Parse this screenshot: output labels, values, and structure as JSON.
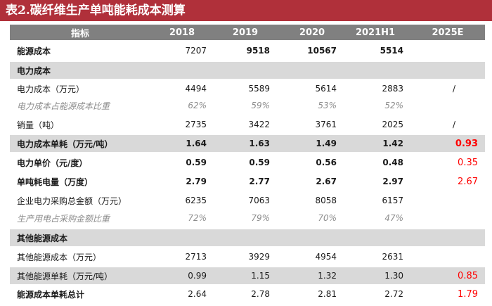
{
  "title": "表2.碳纤维生产单吨能耗成本测算",
  "headers": [
    "指标",
    "2018",
    "2019",
    "2020",
    "2021H1",
    "2025E"
  ],
  "rows": [
    {
      "label": "能源成本",
      "v": [
        "7207",
        "9518",
        "10567",
        "5514",
        ""
      ]
    },
    {
      "label": "电力成本",
      "v": [
        "",
        "",
        "",
        "",
        ""
      ]
    },
    {
      "label": "电力成本（万元）",
      "v": [
        "4494",
        "5589",
        "5614",
        "2883",
        "/"
      ]
    },
    {
      "label": "电力成本占能源成本比重",
      "v": [
        "62%",
        "59%",
        "53%",
        "52%",
        ""
      ]
    },
    {
      "label": "销量（吨）",
      "v": [
        "2735",
        "3422",
        "3761",
        "2025",
        "/"
      ]
    },
    {
      "label": "电力成本单耗（万元/吨）",
      "v": [
        "1.64",
        "1.63",
        "1.49",
        "1.42",
        "0.93"
      ]
    },
    {
      "label": "电力单价（元/度）",
      "v": [
        "0.59",
        "0.59",
        "0.56",
        "0.48",
        "0.35"
      ]
    },
    {
      "label": "单吨耗电量（万度）",
      "v": [
        "2.79",
        "2.77",
        "2.67",
        "2.97",
        "2.67"
      ]
    },
    {
      "label": "企业电力采购总金额（万元）",
      "v": [
        "6235",
        "7063",
        "8058",
        "6157",
        ""
      ]
    },
    {
      "label": "生产用电占采购金额比重",
      "v": [
        "72%",
        "79%",
        "70%",
        "47%",
        ""
      ]
    },
    {
      "label": "其他能源成本",
      "v": [
        "",
        "",
        "",
        "",
        ""
      ]
    },
    {
      "label": "其他能源成本（万元）",
      "v": [
        "2713",
        "3929",
        "4954",
        "2631",
        ""
      ]
    },
    {
      "label": "其他能源单耗（万元/吨）",
      "v": [
        "0.99",
        "1.15",
        "1.32",
        "1.30",
        "0.85"
      ]
    },
    {
      "label": "能源成本单耗总计",
      "v": [
        "2.64",
        "2.78",
        "2.81",
        "2.72",
        "1.79"
      ]
    }
  ]
}
